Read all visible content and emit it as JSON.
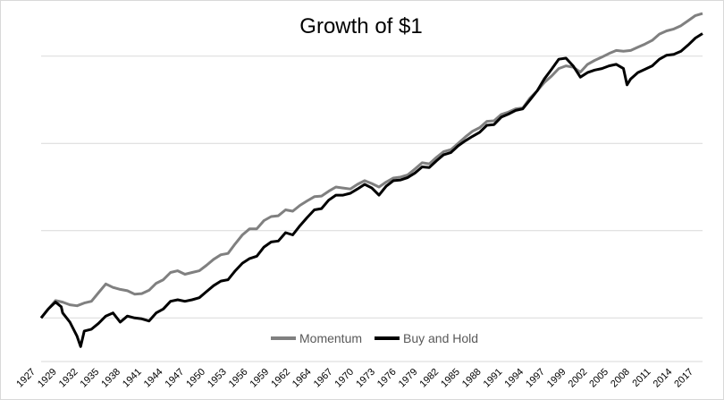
{
  "chart_data": {
    "type": "line",
    "title": "Growth of $1",
    "xlabel": "",
    "ylabel": "",
    "x_range": [
      1927,
      2019
    ],
    "y_scale": "log",
    "y_range": [
      0.1,
      10000000
    ],
    "gridlines": [
      1,
      100,
      10000,
      1000000,
      100000000
    ],
    "x_tick_labels": [
      "1927",
      "1929",
      "1932",
      "1935",
      "1938",
      "1941",
      "1944",
      "1947",
      "1950",
      "1953",
      "1956",
      "1959",
      "1962",
      "1964",
      "1967",
      "1970",
      "1973",
      "1976",
      "1979",
      "1982",
      "1985",
      "1988",
      "1991",
      "1994",
      "1997",
      "1999",
      "2002",
      "2005",
      "2008",
      "2011",
      "2014",
      "2017"
    ],
    "legend_position": "bottom",
    "series": [
      {
        "name": "Momentum",
        "color": "#808080",
        "points": [
          [
            1927,
            1.0
          ],
          [
            1928,
            1.6
          ],
          [
            1929,
            2.5
          ],
          [
            1930,
            2.3
          ],
          [
            1931,
            2.0
          ],
          [
            1932,
            1.9
          ],
          [
            1933,
            2.2
          ],
          [
            1934,
            2.4
          ],
          [
            1935,
            3.8
          ],
          [
            1936,
            6.0
          ],
          [
            1937,
            5.0
          ],
          [
            1938,
            4.5
          ],
          [
            1939,
            4.2
          ],
          [
            1940,
            3.5
          ],
          [
            1941,
            3.6
          ],
          [
            1942,
            4.3
          ],
          [
            1943,
            6.2
          ],
          [
            1944,
            7.5
          ],
          [
            1945,
            11
          ],
          [
            1946,
            12
          ],
          [
            1947,
            10
          ],
          [
            1948,
            11
          ],
          [
            1949,
            12
          ],
          [
            1950,
            16
          ],
          [
            1951,
            22
          ],
          [
            1952,
            28
          ],
          [
            1953,
            30
          ],
          [
            1954,
            50
          ],
          [
            1955,
            80
          ],
          [
            1956,
            110
          ],
          [
            1957,
            110
          ],
          [
            1958,
            170
          ],
          [
            1959,
            210
          ],
          [
            1960,
            220
          ],
          [
            1961,
            300
          ],
          [
            1962,
            280
          ],
          [
            1963,
            380
          ],
          [
            1964,
            480
          ],
          [
            1965,
            600
          ],
          [
            1966,
            620
          ],
          [
            1967,
            800
          ],
          [
            1968,
            1000
          ],
          [
            1969,
            950
          ],
          [
            1970,
            900
          ],
          [
            1971,
            1150
          ],
          [
            1972,
            1400
          ],
          [
            1973,
            1200
          ],
          [
            1974,
            1000
          ],
          [
            1975,
            1300
          ],
          [
            1976,
            1600
          ],
          [
            1977,
            1700
          ],
          [
            1978,
            1900
          ],
          [
            1979,
            2600
          ],
          [
            1980,
            3600
          ],
          [
            1981,
            3400
          ],
          [
            1982,
            4800
          ],
          [
            1983,
            6500
          ],
          [
            1984,
            7200
          ],
          [
            1985,
            10000
          ],
          [
            1986,
            14000
          ],
          [
            1987,
            19000
          ],
          [
            1988,
            23000
          ],
          [
            1989,
            32000
          ],
          [
            1990,
            33000
          ],
          [
            1991,
            46000
          ],
          [
            1992,
            52000
          ],
          [
            1993,
            62000
          ],
          [
            1994,
            65000
          ],
          [
            1995,
            110000
          ],
          [
            1996,
            160000
          ],
          [
            1997,
            250000
          ],
          [
            1998,
            350000
          ],
          [
            1999,
            520000
          ],
          [
            2000,
            600000
          ],
          [
            2001,
            560000
          ],
          [
            2002,
            430000
          ],
          [
            2003,
            650000
          ],
          [
            2004,
            800000
          ],
          [
            2005,
            950000
          ],
          [
            2006,
            1150000
          ],
          [
            2007,
            1350000
          ],
          [
            2008,
            1300000
          ],
          [
            2009,
            1350000
          ],
          [
            2010,
            1600000
          ],
          [
            2011,
            1900000
          ],
          [
            2012,
            2300000
          ],
          [
            2013,
            3200000
          ],
          [
            2014,
            3800000
          ],
          [
            2015,
            4200000
          ],
          [
            2016,
            5000000
          ],
          [
            2017,
            6500000
          ],
          [
            2018,
            8500000
          ],
          [
            2019,
            9500000
          ]
        ]
      },
      {
        "name": "Buy and Hold",
        "color": "#000000",
        "points": [
          [
            1927,
            1.0
          ],
          [
            1928,
            1.6
          ],
          [
            1929,
            2.3
          ],
          [
            1929.8,
            1.8
          ],
          [
            1930,
            1.3
          ],
          [
            1931,
            0.8
          ],
          [
            1932,
            0.38
          ],
          [
            1932.5,
            0.22
          ],
          [
            1933,
            0.5
          ],
          [
            1934,
            0.55
          ],
          [
            1935,
            0.75
          ],
          [
            1936,
            1.1
          ],
          [
            1937,
            1.3
          ],
          [
            1938,
            0.8
          ],
          [
            1939,
            1.1
          ],
          [
            1940,
            1.0
          ],
          [
            1941,
            0.95
          ],
          [
            1942,
            0.85
          ],
          [
            1943,
            1.3
          ],
          [
            1944,
            1.6
          ],
          [
            1945,
            2.4
          ],
          [
            1946,
            2.6
          ],
          [
            1947,
            2.4
          ],
          [
            1948,
            2.6
          ],
          [
            1949,
            2.9
          ],
          [
            1950,
            4.0
          ],
          [
            1951,
            5.5
          ],
          [
            1952,
            7.0
          ],
          [
            1953,
            7.5
          ],
          [
            1954,
            12
          ],
          [
            1955,
            18
          ],
          [
            1956,
            23
          ],
          [
            1957,
            26
          ],
          [
            1958,
            42
          ],
          [
            1959,
            55
          ],
          [
            1960,
            58
          ],
          [
            1961,
            90
          ],
          [
            1962,
            80
          ],
          [
            1963,
            130
          ],
          [
            1964,
            200
          ],
          [
            1965,
            300
          ],
          [
            1966,
            320
          ],
          [
            1967,
            500
          ],
          [
            1968,
            650
          ],
          [
            1969,
            650
          ],
          [
            1970,
            720
          ],
          [
            1971,
            900
          ],
          [
            1972,
            1150
          ],
          [
            1973,
            950
          ],
          [
            1974,
            650
          ],
          [
            1975,
            1050
          ],
          [
            1976,
            1400
          ],
          [
            1977,
            1450
          ],
          [
            1978,
            1650
          ],
          [
            1979,
            2100
          ],
          [
            1980,
            2900
          ],
          [
            1981,
            2800
          ],
          [
            1982,
            4000
          ],
          [
            1983,
            5500
          ],
          [
            1984,
            6200
          ],
          [
            1985,
            8800
          ],
          [
            1986,
            11500
          ],
          [
            1987,
            14500
          ],
          [
            1988,
            18000
          ],
          [
            1989,
            26000
          ],
          [
            1990,
            27000
          ],
          [
            1991,
            40000
          ],
          [
            1992,
            47000
          ],
          [
            1993,
            57000
          ],
          [
            1994,
            62000
          ],
          [
            1995,
            100000
          ],
          [
            1996,
            160000
          ],
          [
            1997,
            300000
          ],
          [
            1998,
            500000
          ],
          [
            1999,
            850000
          ],
          [
            2000,
            900000
          ],
          [
            2001,
            600000
          ],
          [
            2002,
            330000
          ],
          [
            2003,
            420000
          ],
          [
            2004,
            480000
          ],
          [
            2005,
            520000
          ],
          [
            2006,
            600000
          ],
          [
            2007,
            650000
          ],
          [
            2008,
            520000
          ],
          [
            2008.5,
            220000
          ],
          [
            2009,
            300000
          ],
          [
            2010,
            420000
          ],
          [
            2011,
            500000
          ],
          [
            2012,
            600000
          ],
          [
            2013,
            850000
          ],
          [
            2014,
            1050000
          ],
          [
            2015,
            1100000
          ],
          [
            2016,
            1300000
          ],
          [
            2017,
            1800000
          ],
          [
            2018,
            2600000
          ],
          [
            2019,
            3300000
          ]
        ]
      }
    ]
  }
}
